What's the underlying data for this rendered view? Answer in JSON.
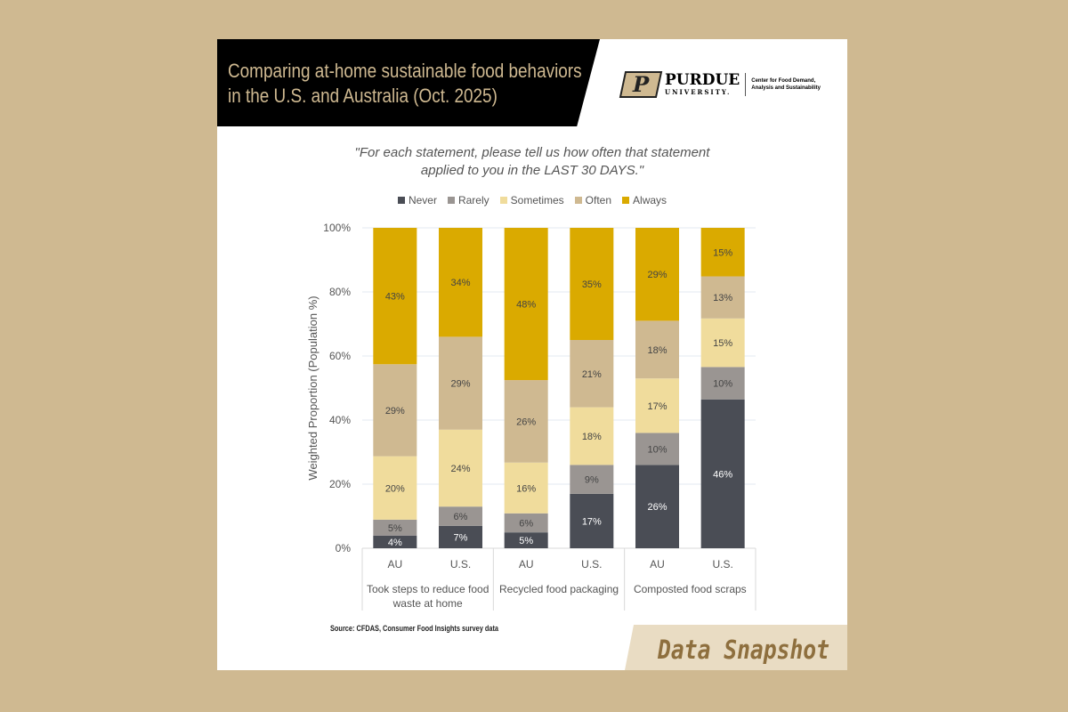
{
  "header": {
    "title_line1": "Comparing at-home sustainable food behaviors",
    "title_line2": "in the U.S. and Australia (Oct. 2025)",
    "logo_text": "PURDUE",
    "logo_sub": "UNIVERSITY.",
    "center_name_line1": "Center for Food Demand,",
    "center_name_line2": "Analysis and Sustainability"
  },
  "footer": {
    "source": "Source: CFDAS, Consumer Food Insights survey data",
    "badge": "Data Snapshot"
  },
  "colors": {
    "background": "#cfb991",
    "Never": "#4a4d55",
    "Rarely": "#9a9592",
    "Sometimes": "#f0dc9c",
    "Often": "#cfb991",
    "Always": "#daaa00"
  },
  "chart_data": {
    "type": "bar",
    "stacked": true,
    "subtitle_line1": "\"For each statement, please tell us how often that statement",
    "subtitle_line2": "applied to you in the LAST 30 DAYS.\"",
    "ylabel": "Weighted Proportion (Population %)",
    "ylim": [
      0,
      100
    ],
    "yticks": [
      "0%",
      "20%",
      "40%",
      "60%",
      "80%",
      "100%"
    ],
    "legend_position": "top",
    "grid": true,
    "groups": [
      "Took steps to reduce food waste at home",
      "Recycled food packaging",
      "Composted food scraps"
    ],
    "categories": [
      "AU",
      "U.S.",
      "AU",
      "U.S.",
      "AU",
      "U.S."
    ],
    "series": [
      {
        "name": "Never",
        "values": [
          4,
          7,
          5,
          17,
          26,
          46
        ]
      },
      {
        "name": "Rarely",
        "values": [
          5,
          6,
          6,
          9,
          10,
          10
        ]
      },
      {
        "name": "Sometimes",
        "values": [
          20,
          24,
          16,
          18,
          17,
          15
        ]
      },
      {
        "name": "Often",
        "values": [
          29,
          29,
          26,
          21,
          18,
          13
        ]
      },
      {
        "name": "Always",
        "values": [
          43,
          34,
          48,
          35,
          29,
          15
        ]
      }
    ]
  }
}
